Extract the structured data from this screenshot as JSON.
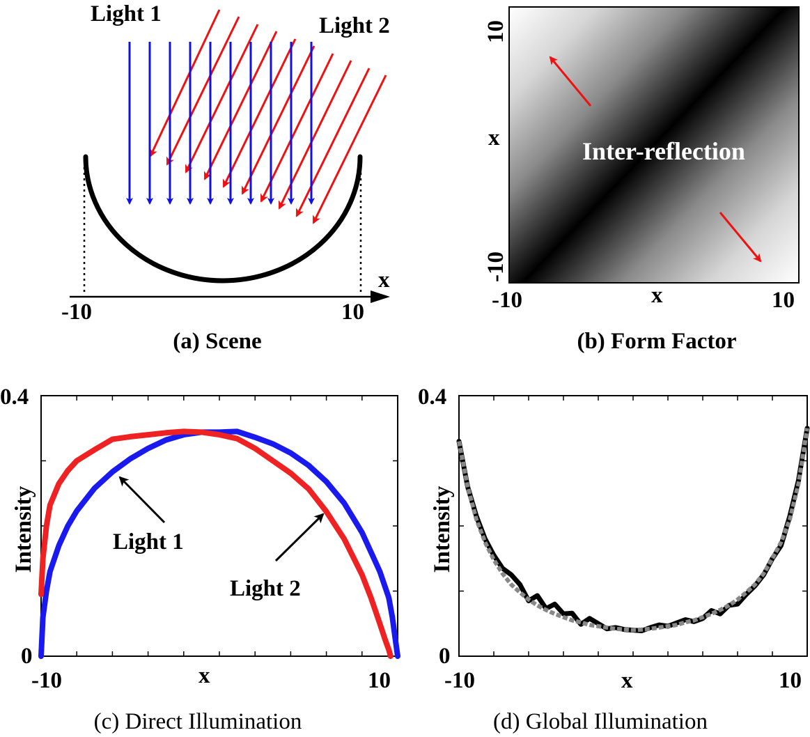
{
  "chart_data": [
    {
      "type": "diagram",
      "caption": "(a) Scene",
      "light1_label": "Light 1",
      "light2_label": "Light 2",
      "x_axis_label": "x",
      "x_ticks": [
        "-10",
        "10"
      ],
      "colors": {
        "light1": "#1010e0",
        "light2": "#ee1111",
        "surface": "#000000"
      }
    },
    {
      "type": "heatmap",
      "caption": "(b) Form Factor",
      "annotation": "Inter-reflection",
      "xlabel": "x",
      "ylabel": "x",
      "x_ticks": [
        "-10",
        "10"
      ],
      "y_ticks": [
        "-10",
        "10"
      ],
      "xlim": [
        -10,
        10
      ],
      "ylim": [
        -10,
        10
      ],
      "colormap": "gray",
      "value_model": "form factor increases with |x1 - x2|: black on the diagonal, white at the off-diagonal corners"
    },
    {
      "type": "line",
      "caption": "(c) Direct Illumination",
      "xlabel": "x",
      "ylabel": "Intensity",
      "xlim": [
        -10,
        10
      ],
      "ylim": [
        0,
        0.4
      ],
      "x_ticks": [
        "-10",
        "10"
      ],
      "y_ticks": [
        "0",
        "0.4"
      ],
      "annotations": [
        "Light 1",
        "Light 2"
      ],
      "series": [
        {
          "color": "#1a1aee",
          "x": [
            -10,
            -9.9,
            -9.7,
            -9.5,
            -9,
            -8.5,
            -8,
            -7,
            -6,
            -5,
            -4,
            -3,
            -2,
            -1,
            0,
            1,
            2,
            3,
            4,
            5,
            6,
            7,
            8,
            9,
            9.5,
            9.7,
            9.9,
            10
          ],
          "values": [
            0,
            0.06,
            0.1,
            0.13,
            0.17,
            0.2,
            0.223,
            0.258,
            0.283,
            0.303,
            0.319,
            0.332,
            0.34,
            0.344,
            0.344,
            0.345,
            0.336,
            0.326,
            0.312,
            0.293,
            0.268,
            0.235,
            0.19,
            0.13,
            0.09,
            0.06,
            0.02,
            0
          ]
        },
        {
          "color": "#ee2222",
          "x": [
            -10,
            -9.9,
            -9.7,
            -9.5,
            -9,
            -8.5,
            -8,
            -7,
            -6,
            -5,
            -4,
            -3,
            -2,
            -1,
            0,
            1,
            2,
            3,
            4,
            5,
            6,
            7,
            8,
            8.5,
            9,
            9.3,
            9.5,
            9.6
          ],
          "values": [
            0.095,
            0.15,
            0.2,
            0.232,
            0.265,
            0.285,
            0.3,
            0.317,
            0.333,
            0.337,
            0.34,
            0.343,
            0.345,
            0.344,
            0.34,
            0.334,
            0.319,
            0.3,
            0.281,
            0.257,
            0.222,
            0.18,
            0.125,
            0.09,
            0.05,
            0.025,
            0.01,
            0
          ]
        }
      ]
    },
    {
      "type": "line",
      "caption": "(d) Global Illumination",
      "xlabel": "x",
      "ylabel": "Intensity",
      "xlim": [
        -10,
        10
      ],
      "ylim": [
        0,
        0.4
      ],
      "x_ticks": [
        "-10",
        "10"
      ],
      "y_ticks": [
        "0",
        "0.4"
      ],
      "series": [
        {
          "color": "#000000",
          "style": "solid",
          "x": [
            -10,
            -9.5,
            -9,
            -8.5,
            -8,
            -7.5,
            -7,
            -6.5,
            -6,
            -5.5,
            -5,
            -4.5,
            -4,
            -3.5,
            -3,
            -2.5,
            -2,
            -1.5,
            -1,
            -0.5,
            0,
            0.5,
            1,
            1.5,
            2,
            2.5,
            3,
            3.5,
            4,
            4.5,
            5,
            5.5,
            6,
            6.5,
            7,
            7.5,
            8,
            8.5,
            9,
            9.5,
            10
          ],
          "values": [
            0.33,
            0.26,
            0.215,
            0.18,
            0.155,
            0.135,
            0.125,
            0.11,
            0.085,
            0.093,
            0.073,
            0.08,
            0.065,
            0.066,
            0.049,
            0.058,
            0.05,
            0.042,
            0.044,
            0.041,
            0.04,
            0.039,
            0.044,
            0.048,
            0.046,
            0.051,
            0.056,
            0.053,
            0.058,
            0.07,
            0.065,
            0.078,
            0.08,
            0.095,
            0.108,
            0.125,
            0.15,
            0.17,
            0.215,
            0.27,
            0.35
          ]
        },
        {
          "color": "#888888",
          "style": "dashed",
          "x": [
            -10,
            -9.5,
            -9,
            -8.5,
            -8,
            -7.5,
            -7,
            -6.5,
            -6,
            -5.5,
            -5,
            -4.5,
            -4,
            -3.5,
            -3,
            -2.5,
            -2,
            -1.5,
            -1,
            -0.5,
            0,
            0.5,
            1,
            1.5,
            2,
            2.5,
            3,
            3.5,
            4,
            4.5,
            5,
            5.5,
            6,
            6.5,
            7,
            7.5,
            8,
            8.5,
            9,
            9.5,
            10
          ],
          "values": [
            0.33,
            0.26,
            0.21,
            0.175,
            0.148,
            0.127,
            0.11,
            0.098,
            0.087,
            0.078,
            0.071,
            0.065,
            0.06,
            0.055,
            0.052,
            0.048,
            0.046,
            0.044,
            0.042,
            0.041,
            0.04,
            0.041,
            0.042,
            0.044,
            0.046,
            0.048,
            0.052,
            0.055,
            0.06,
            0.065,
            0.071,
            0.078,
            0.087,
            0.098,
            0.11,
            0.127,
            0.15,
            0.175,
            0.21,
            0.265,
            0.35
          ]
        }
      ]
    }
  ]
}
